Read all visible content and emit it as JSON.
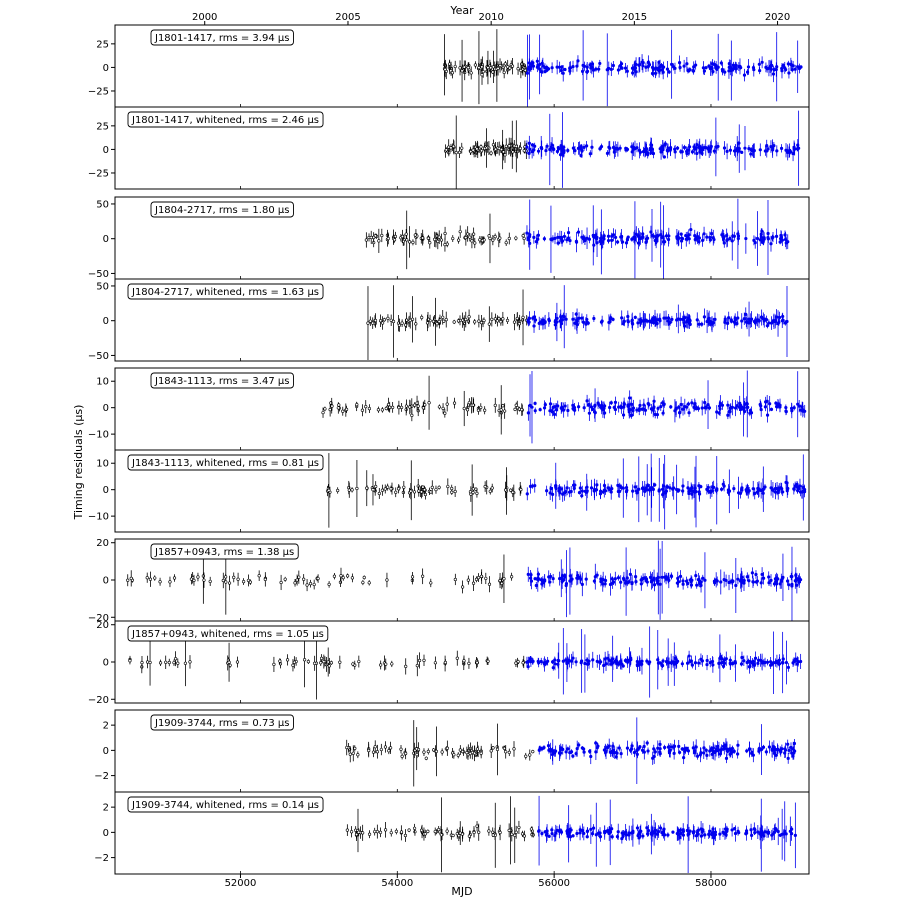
{
  "figure": {
    "top_axis_label": "Year",
    "bottom_axis_label": "MJD",
    "y_axis_label": "Timing residuals (μs)"
  },
  "x_axis": {
    "mjd_range": [
      50400,
      59250
    ],
    "mjd_ticks": [
      52000,
      54000,
      56000,
      58000
    ],
    "year_ticks": [
      {
        "label": "2000",
        "mjd": 51544
      },
      {
        "label": "2005",
        "mjd": 53371
      },
      {
        "label": "2010",
        "mjd": 55197
      },
      {
        "label": "2015",
        "mjd": 57023
      },
      {
        "label": "2020",
        "mjd": 58849
      }
    ]
  },
  "colors": {
    "legacy_data": "#000000",
    "new_data": "#0000ee",
    "frame": "#000000"
  },
  "chart_data": [
    {
      "type": "scatter",
      "pulsar": "J1801-1417",
      "title": "J1801-1417, rms = 3.94 μs",
      "legend_position": "top-left",
      "ylim": [
        -42,
        45
      ],
      "yticks": [
        -25,
        0,
        25
      ],
      "tick_labels": [
        "−25",
        "0",
        "25"
      ],
      "data_span_mjd": [
        54600,
        59150
      ],
      "transition_mjd": 55650,
      "residual_rms_us": 3.94,
      "whitened": false
    },
    {
      "type": "scatter",
      "pulsar": "J1801-1417",
      "title": "J1801-1417, whitened, rms = 2.46 μs",
      "legend_position": "top-left",
      "ylim": [
        -42,
        45
      ],
      "yticks": [
        -25,
        0,
        25
      ],
      "tick_labels": [
        "−25",
        "0",
        "25"
      ],
      "data_span_mjd": [
        54600,
        59150
      ],
      "transition_mjd": 55650,
      "residual_rms_us": 2.46,
      "whitened": true
    },
    {
      "type": "scatter",
      "pulsar": "J1804-2717",
      "title": "J1804-2717, rms = 1.80 μs",
      "legend_position": "top-left",
      "ylim": [
        -58,
        60
      ],
      "yticks": [
        -50,
        0,
        50
      ],
      "tick_labels": [
        "−50",
        "0",
        "50"
      ],
      "data_span_mjd": [
        53600,
        59000
      ],
      "transition_mjd": 55650,
      "residual_rms_us": 1.8,
      "whitened": false
    },
    {
      "type": "scatter",
      "pulsar": "J1804-2717",
      "title": "J1804-2717, whitened, rms = 1.63 μs",
      "legend_position": "top-left",
      "ylim": [
        -58,
        60
      ],
      "yticks": [
        -50,
        0,
        50
      ],
      "tick_labels": [
        "−50",
        "0",
        "50"
      ],
      "data_span_mjd": [
        53600,
        59000
      ],
      "transition_mjd": 55650,
      "residual_rms_us": 1.63,
      "whitened": true
    },
    {
      "type": "scatter",
      "pulsar": "J1843-1113",
      "title": "J1843-1113, rms = 3.47 μs",
      "legend_position": "top-left",
      "ylim": [
        -16,
        15
      ],
      "yticks": [
        -10,
        0,
        10
      ],
      "tick_labels": [
        "−10",
        "0",
        "10"
      ],
      "data_span_mjd": [
        53050,
        59200
      ],
      "transition_mjd": 55650,
      "residual_rms_us": 3.47,
      "whitened": false
    },
    {
      "type": "scatter",
      "pulsar": "J1843-1113",
      "title": "J1843-1113, whitened, rms = 0.81 μs",
      "legend_position": "top-left",
      "ylim": [
        -16,
        15
      ],
      "yticks": [
        -10,
        0,
        10
      ],
      "tick_labels": [
        "−10",
        "0",
        "10"
      ],
      "data_span_mjd": [
        53050,
        59200
      ],
      "transition_mjd": 55650,
      "residual_rms_us": 0.81,
      "whitened": true
    },
    {
      "type": "scatter",
      "pulsar": "J1857+0943",
      "title": "J1857+0943, rms = 1.38 μs",
      "legend_position": "top-left",
      "ylim": [
        -22,
        22
      ],
      "yticks": [
        -20,
        0,
        20
      ],
      "tick_labels": [
        "−20",
        "0",
        "20"
      ],
      "data_span_mjd": [
        50500,
        59150
      ],
      "transition_mjd": 55650,
      "residual_rms_us": 1.38,
      "whitened": false
    },
    {
      "type": "scatter",
      "pulsar": "J1857+0943",
      "title": "J1857+0943, whitened, rms = 1.05 μs",
      "legend_position": "top-left",
      "ylim": [
        -22,
        22
      ],
      "yticks": [
        -20,
        0,
        20
      ],
      "tick_labels": [
        "−20",
        "0",
        "20"
      ],
      "data_span_mjd": [
        50500,
        59150
      ],
      "transition_mjd": 55650,
      "residual_rms_us": 1.05,
      "whitened": true
    },
    {
      "type": "scatter",
      "pulsar": "J1909-3744",
      "title": "J1909-3744, rms = 0.73 μs",
      "legend_position": "top-left",
      "ylim": [
        -3.3,
        3.2
      ],
      "yticks": [
        -2,
        0,
        2
      ],
      "tick_labels": [
        "−2",
        "0",
        "2"
      ],
      "data_span_mjd": [
        53350,
        59100
      ],
      "transition_mjd": 55800,
      "residual_rms_us": 0.73,
      "whitened": false
    },
    {
      "type": "scatter",
      "pulsar": "J1909-3744",
      "title": "J1909-3744, whitened, rms = 0.14 μs",
      "legend_position": "top-left",
      "ylim": [
        -3.3,
        3.2
      ],
      "yticks": [
        -2,
        0,
        2
      ],
      "tick_labels": [
        "−2",
        "0",
        "2"
      ],
      "data_span_mjd": [
        53350,
        59100
      ],
      "transition_mjd": 55800,
      "residual_rms_us": 0.14,
      "whitened": true
    }
  ]
}
